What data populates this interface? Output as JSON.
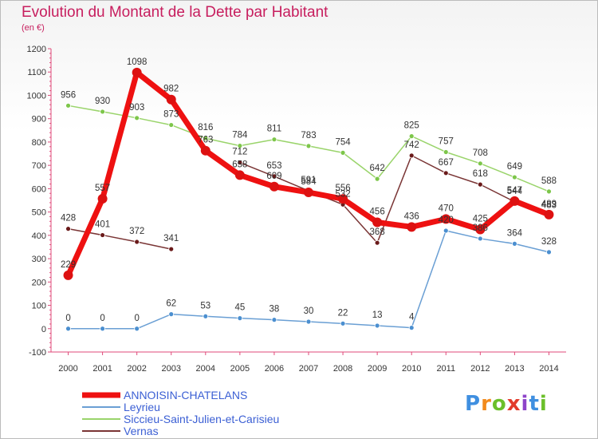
{
  "title": "Evolution du Montant de la Dette par Habitant",
  "subtitle": "(en €)",
  "logo": "Proxiti",
  "chart_data": {
    "type": "line",
    "title": "Evolution du Montant de la Dette par Habitant",
    "ylabel": "(en €)",
    "ylim": [
      -100,
      1200
    ],
    "yticks": [
      -100,
      0,
      100,
      200,
      300,
      400,
      500,
      600,
      700,
      800,
      900,
      1000,
      1100,
      1200
    ],
    "x": [
      "2000",
      "2001",
      "2002",
      "2003",
      "2004",
      "2005",
      "2006",
      "2007",
      "2008",
      "2009",
      "2010",
      "2011",
      "2012",
      "2013",
      "2014"
    ],
    "grid": false,
    "legend": "bottom-left",
    "series": [
      {
        "name": "ANNOISIN-CHATELANS",
        "color": "#ee1111",
        "marker": "#dd1111",
        "bold": true,
        "values": [
          229,
          557,
          1098,
          982,
          763,
          658,
          609,
          584,
          556,
          456,
          436,
          470,
          425,
          547,
          489
        ]
      },
      {
        "name": "Leyrieu",
        "color": "#6a9fd4",
        "marker": "#4b8fd0",
        "values": [
          0,
          0,
          0,
          62,
          53,
          45,
          38,
          30,
          22,
          13,
          4,
          420,
          386,
          364,
          328
        ]
      },
      {
        "name": "Siccieu-Saint-Julien-et-Carisieu",
        "color": "#9ad46b",
        "marker": "#7dc64a",
        "values": [
          956,
          930,
          903,
          873,
          816,
          784,
          811,
          783,
          754,
          642,
          825,
          757,
          708,
          649,
          588
        ]
      },
      {
        "name": "Vernas",
        "color": "#7a3535",
        "marker": "#6a1a1a",
        "values": [
          428,
          401,
          372,
          341,
          null,
          712,
          653,
          591,
          532,
          368,
          742,
          667,
          618,
          544,
          483
        ]
      }
    ]
  }
}
